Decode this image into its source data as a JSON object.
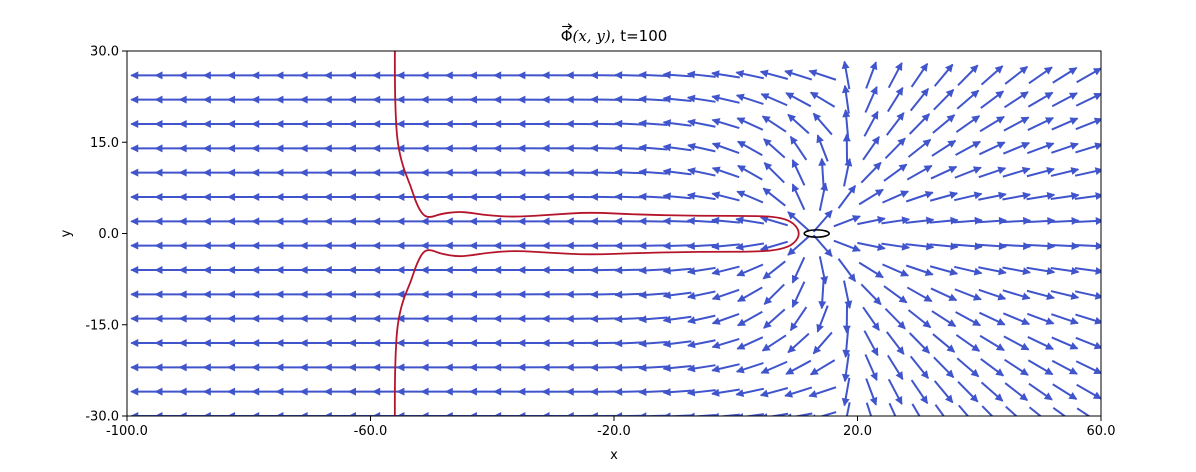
{
  "chart_data": {
    "type": "quiver",
    "title": {
      "phi_symbol": "Φ",
      "args": "(x, y)",
      "suffix": ", t=100"
    },
    "xlabel": "x",
    "ylabel": "y",
    "xlim": [
      -100,
      60
    ],
    "ylim": [
      -30,
      30
    ],
    "xticks": [
      -100,
      -60,
      -20,
      20,
      60
    ],
    "yticks": [
      -30,
      -15,
      0,
      15,
      30
    ],
    "xtick_labels": [
      "-100.0",
      "-60.0",
      "-20.0",
      "20.0",
      "60.0"
    ],
    "ytick_labels": [
      "-30.0",
      "-15.0",
      "0.0",
      "15.0",
      "30.0"
    ],
    "quiver": {
      "color": "#4055cc",
      "x_range": [
        -97,
        58
      ],
      "grid_columns": 40,
      "y_levels": [
        -30,
        -26,
        -22,
        -18,
        -14,
        -10,
        -6,
        -2,
        2,
        6,
        10,
        14,
        18,
        22,
        26
      ],
      "source_point": [
        12.5,
        0
      ],
      "far_field_direction": "left"
    },
    "contour": {
      "color": "#b5152b",
      "line_width": 1.8,
      "points": [
        [
          -56,
          30
        ],
        [
          -56,
          25
        ],
        [
          -55.9,
          20
        ],
        [
          -55.6,
          15
        ],
        [
          -54.7,
          11
        ],
        [
          -53.4,
          7.8
        ],
        [
          -52.5,
          5
        ],
        [
          -51.4,
          3
        ],
        [
          -50.2,
          2.6
        ],
        [
          -48.6,
          3.2
        ],
        [
          -45.7,
          3.6
        ],
        [
          -43.5,
          3.4
        ],
        [
          -41,
          3
        ],
        [
          -36.5,
          2.7
        ],
        [
          -30,
          3.1
        ],
        [
          -24,
          3.5
        ],
        [
          -16,
          3.1
        ],
        [
          -6,
          2.9
        ],
        [
          4,
          2.9
        ],
        [
          7.5,
          2.6
        ],
        [
          9.6,
          1.7
        ],
        [
          10.6,
          0
        ],
        [
          9.6,
          -1.7
        ],
        [
          7.5,
          -2.6
        ],
        [
          4,
          -3
        ],
        [
          -6,
          -3
        ],
        [
          -16,
          -3.2
        ],
        [
          -24,
          -3.5
        ],
        [
          -30,
          -3.2
        ],
        [
          -36.5,
          -2.8
        ],
        [
          -41,
          -3.2
        ],
        [
          -43.5,
          -3.6
        ],
        [
          -45.7,
          -3.8
        ],
        [
          -48.6,
          -3.3
        ],
        [
          -50.2,
          -2.6
        ],
        [
          -51.4,
          -3
        ],
        [
          -52.5,
          -5.2
        ],
        [
          -53.4,
          -8
        ],
        [
          -54.7,
          -11
        ],
        [
          -55.6,
          -15
        ],
        [
          -55.9,
          -20
        ],
        [
          -56,
          -25
        ],
        [
          -56,
          -30
        ]
      ]
    },
    "zero_contour": {
      "label": "0",
      "center": [
        13.3,
        0
      ],
      "rx": 0.5,
      "ry": 0.7
    }
  }
}
